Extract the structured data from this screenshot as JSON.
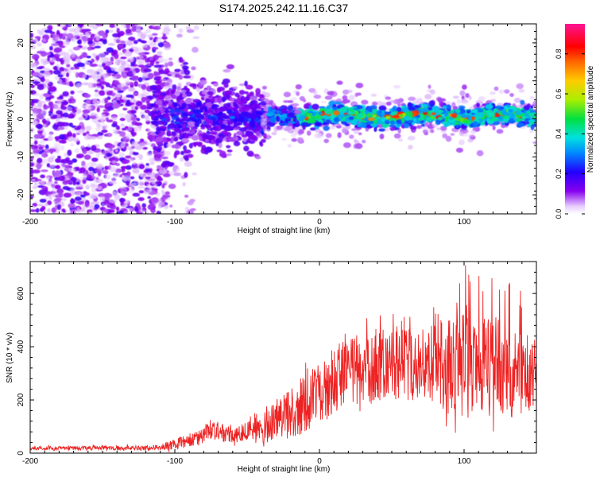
{
  "title": "S174.2025.242.11.16.C37",
  "chart_data": [
    {
      "type": "heatmap",
      "xlabel": "Height of straight line (km)",
      "ylabel": "Frequency (Hz)",
      "xlim": [
        -200,
        150
      ],
      "ylim": [
        -25,
        25
      ],
      "xticks": [
        -200,
        -100,
        0,
        100
      ],
      "yticks": [
        -20,
        -10,
        0,
        10,
        20
      ],
      "colorbar": {
        "label": "Normalized spectral amplitude",
        "range": [
          0,
          0.95
        ],
        "ticks": [
          0.0,
          0.2,
          0.4,
          0.6,
          0.8
        ],
        "tick_labels": [
          "0.0",
          "0.2",
          "0.4",
          "0.6",
          "0.8"
        ],
        "colormap": "rainbow-purple-to-magenta"
      },
      "description_regions": [
        {
          "x_range": [
            -200,
            -105
          ],
          "freq_range": [
            -25,
            25
          ],
          "amplitude": "0.0-0.2 scattered noise"
        },
        {
          "x_range": [
            -105,
            -35
          ],
          "freq_range": [
            -10,
            10
          ],
          "amplitude": "0.1-0.3"
        },
        {
          "x_range": [
            -35,
            150
          ],
          "freq_range": [
            -3,
            3
          ],
          "amplitude": "0.3-0.95 narrow band centered near 0-1 Hz"
        }
      ]
    },
    {
      "type": "line",
      "xlabel": "Height of straight line (km)",
      "ylabel": "SNR (10 * v/v)",
      "xlim": [
        -200,
        150
      ],
      "ylim": [
        0,
        720
      ],
      "xticks": [
        -200,
        -100,
        0,
        100
      ],
      "yticks": [
        0,
        200,
        400,
        600
      ],
      "color": "#ee2222",
      "envelope_x": [
        -200,
        -120,
        -110,
        -100,
        -80,
        -75,
        -60,
        -50,
        -40,
        -30,
        -20,
        -10,
        0,
        10,
        20,
        40,
        60,
        80,
        100,
        120,
        140,
        150
      ],
      "envelope_mean": [
        18,
        20,
        22,
        35,
        60,
        90,
        65,
        75,
        90,
        120,
        150,
        190,
        230,
        270,
        300,
        330,
        340,
        340,
        340,
        320,
        300,
        290
      ],
      "envelope_amp": [
        10,
        12,
        15,
        30,
        45,
        60,
        40,
        60,
        80,
        110,
        140,
        160,
        170,
        180,
        190,
        200,
        200,
        210,
        300,
        280,
        230,
        220
      ]
    }
  ]
}
